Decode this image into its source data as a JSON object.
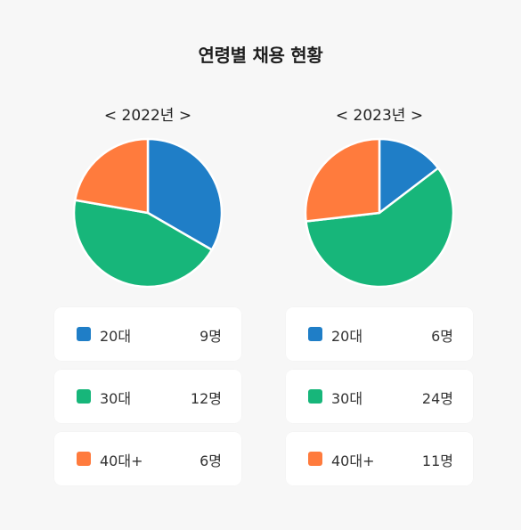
{
  "title": "연령별 채용 현황",
  "colors": {
    "20s": "#1f7ec7",
    "30s": "#17b67a",
    "40s": "#ff7b3d"
  },
  "chart_data": [
    {
      "type": "pie",
      "title": "< 2022년 >",
      "categories": [
        "20대",
        "30대",
        "40대+"
      ],
      "values": [
        9,
        12,
        6
      ],
      "value_labels": [
        "9명",
        "12명",
        "6명"
      ],
      "colors": [
        "#1f7ec7",
        "#17b67a",
        "#ff7b3d"
      ]
    },
    {
      "type": "pie",
      "title": "< 2023년 >",
      "categories": [
        "20대",
        "30대",
        "40대+"
      ],
      "values": [
        6,
        24,
        11
      ],
      "value_labels": [
        "6명",
        "24명",
        "11명"
      ],
      "colors": [
        "#1f7ec7",
        "#17b67a",
        "#ff7b3d"
      ]
    }
  ]
}
